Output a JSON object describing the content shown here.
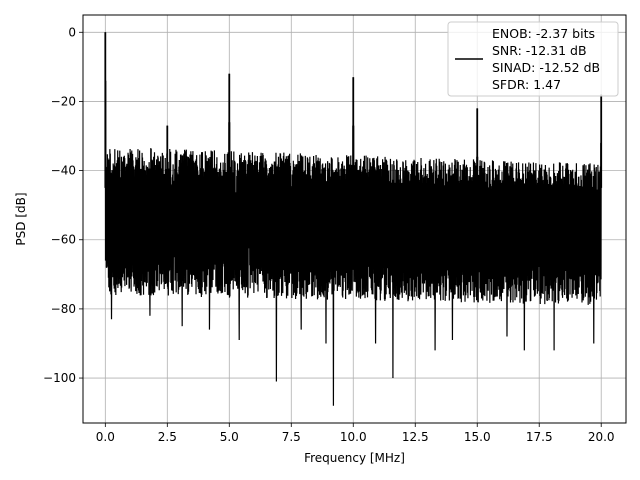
{
  "chart_data": {
    "type": "line",
    "title": "",
    "xlabel": "Frequency [MHz]",
    "ylabel": "PSD [dB]",
    "xlim": [
      -0.9,
      21.0
    ],
    "ylim": [
      -113.0,
      5.0
    ],
    "x_ticks": [
      0.0,
      2.5,
      5.0,
      7.5,
      10.0,
      12.5,
      15.0,
      17.5,
      20.0
    ],
    "x_tick_labels": [
      "0.0",
      "2.5",
      "5.0",
      "7.5",
      "10.0",
      "12.5",
      "15.0",
      "17.5",
      "20.0"
    ],
    "y_ticks": [
      0,
      -20,
      -40,
      -60,
      -80,
      -100
    ],
    "y_tick_labels": [
      "0",
      "−20",
      "−40",
      "−60",
      "−80",
      "−100"
    ],
    "grid": true,
    "legend_position": "top-right",
    "line_color": "#000000",
    "legend_lines": [
      "ENOB: -2.37 bits",
      "SNR: -12.31 dB",
      "SINAD: -12.52 dB",
      "SFDR: 1.47"
    ],
    "series": [
      {
        "x_range": [
          0.0,
          20.0
        ],
        "noise_envelope": {
          "upper_start": -33,
          "upper_end": -38,
          "lower_start": -76,
          "lower_end": -79
        },
        "peaks": [
          {
            "x": 0.0,
            "y": 0
          },
          {
            "x": 2.5,
            "y": -27
          },
          {
            "x": 5.0,
            "y": -12
          },
          {
            "x": 10.0,
            "y": -13
          },
          {
            "x": 15.0,
            "y": -22
          },
          {
            "x": 20.0,
            "y": -18
          }
        ],
        "dips": [
          {
            "x": 0.25,
            "y": -83
          },
          {
            "x": 1.8,
            "y": -82
          },
          {
            "x": 3.1,
            "y": -85
          },
          {
            "x": 4.2,
            "y": -86
          },
          {
            "x": 5.4,
            "y": -89
          },
          {
            "x": 6.9,
            "y": -101
          },
          {
            "x": 7.9,
            "y": -86
          },
          {
            "x": 8.9,
            "y": -90
          },
          {
            "x": 9.2,
            "y": -108
          },
          {
            "x": 10.9,
            "y": -90
          },
          {
            "x": 11.6,
            "y": -100
          },
          {
            "x": 13.3,
            "y": -92
          },
          {
            "x": 14.0,
            "y": -89
          },
          {
            "x": 16.2,
            "y": -88
          },
          {
            "x": 16.9,
            "y": -92
          },
          {
            "x": 18.1,
            "y": -92
          },
          {
            "x": 19.7,
            "y": -90
          }
        ]
      }
    ]
  }
}
